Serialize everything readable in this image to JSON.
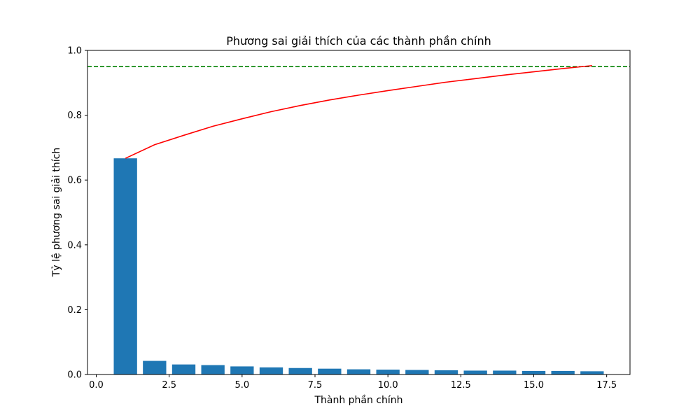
{
  "chart_data": {
    "type": "bar",
    "title": "Phương sai giải thích của các thành phần chính",
    "xlabel": "Thành phần chính",
    "ylabel": "Tỷ lệ phương sai giải thích",
    "xlim": [
      -0.3,
      18.3
    ],
    "ylim": [
      0,
      1.0
    ],
    "x_ticks": [
      0.0,
      2.5,
      5.0,
      7.5,
      10.0,
      12.5,
      15.0,
      17.5
    ],
    "x_tick_labels": [
      "0.0",
      "2.5",
      "5.0",
      "7.5",
      "10.0",
      "12.5",
      "15.0",
      "17.5"
    ],
    "y_ticks": [
      0.0,
      0.2,
      0.4,
      0.6,
      0.8,
      1.0
    ],
    "y_tick_labels": [
      "0.0",
      "0.2",
      "0.4",
      "0.6",
      "0.8",
      "1.0"
    ],
    "grid": false,
    "series": [
      {
        "type": "bar",
        "color": "#1f77b4",
        "x": [
          1,
          2,
          3,
          4,
          5,
          6,
          7,
          8,
          9,
          10,
          11,
          12,
          13,
          14,
          15,
          16,
          17
        ],
        "values": [
          0.667,
          0.042,
          0.031,
          0.029,
          0.025,
          0.022,
          0.02,
          0.018,
          0.016,
          0.015,
          0.014,
          0.013,
          0.012,
          0.012,
          0.011,
          0.011,
          0.01
        ]
      },
      {
        "type": "line",
        "color": "#ff0000",
        "x": [
          1,
          2,
          3,
          4,
          5,
          6,
          7,
          8,
          9,
          10,
          11,
          12,
          13,
          14,
          15,
          16,
          17
        ],
        "values": [
          0.667,
          0.709,
          0.738,
          0.766,
          0.789,
          0.811,
          0.83,
          0.847,
          0.862,
          0.876,
          0.889,
          0.902,
          0.913,
          0.924,
          0.934,
          0.944,
          0.953
        ]
      }
    ],
    "threshold": {
      "y": 0.95,
      "color": "#008000",
      "style": "dashed"
    }
  }
}
